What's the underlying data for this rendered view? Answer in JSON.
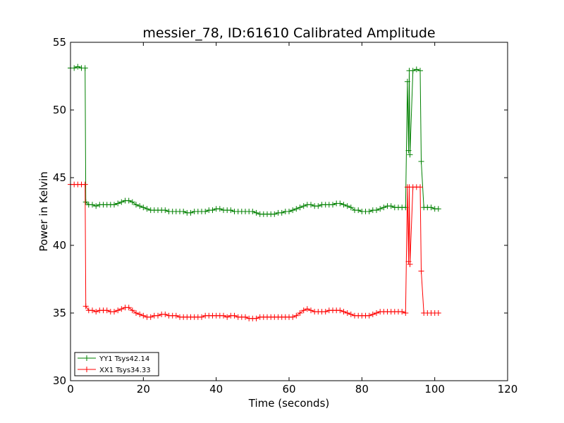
{
  "chart_data": {
    "type": "line",
    "title": "messier_78, ID:61610 Calibrated Amplitude",
    "xlabel": "Time (seconds)",
    "ylabel": "Power in Kelvin",
    "xlim": [
      0,
      120
    ],
    "ylim": [
      30,
      55
    ],
    "xticks": [
      "0",
      "20",
      "40",
      "60",
      "80",
      "100",
      "120"
    ],
    "yticks": [
      "30",
      "35",
      "40",
      "45",
      "50",
      "55"
    ],
    "grid": false,
    "legend_position": "lower-left",
    "series": [
      {
        "name": "YY1 Tsys42.14",
        "color": "#008000",
        "marker": "+",
        "x": [
          0,
          1,
          2,
          3,
          4,
          4.2,
          5,
          6,
          7,
          8,
          9,
          10,
          11,
          12,
          13,
          14,
          15,
          16,
          17,
          18,
          19,
          20,
          21,
          22,
          23,
          24,
          25,
          26,
          27,
          28,
          29,
          30,
          31,
          32,
          33,
          34,
          35,
          36,
          37,
          38,
          39,
          40,
          41,
          42,
          43,
          44,
          45,
          46,
          47,
          48,
          49,
          50,
          51,
          52,
          53,
          54,
          55,
          56,
          57,
          58,
          59,
          60,
          61,
          62,
          63,
          64,
          65,
          66,
          67,
          68,
          69,
          70,
          71,
          72,
          73,
          74,
          75,
          76,
          77,
          78,
          79,
          80,
          81,
          82,
          83,
          84,
          85,
          86,
          87,
          88,
          89,
          90,
          91,
          92,
          92.5,
          92.8,
          93,
          93.2,
          94,
          95,
          96,
          96.3,
          97,
          98,
          99,
          100,
          101
        ],
        "values": [
          53.1,
          53.1,
          53.2,
          53.1,
          53.1,
          43.2,
          43.0,
          43.0,
          42.9,
          43.0,
          43.0,
          43.0,
          43.0,
          43.0,
          43.1,
          43.2,
          43.3,
          43.3,
          43.2,
          43.0,
          42.9,
          42.8,
          42.7,
          42.6,
          42.6,
          42.6,
          42.6,
          42.6,
          42.5,
          42.5,
          42.5,
          42.5,
          42.5,
          42.4,
          42.4,
          42.5,
          42.5,
          42.5,
          42.5,
          42.6,
          42.6,
          42.7,
          42.7,
          42.6,
          42.6,
          42.6,
          42.5,
          42.5,
          42.5,
          42.5,
          42.5,
          42.5,
          42.4,
          42.3,
          42.3,
          42.3,
          42.3,
          42.3,
          42.4,
          42.4,
          42.5,
          42.5,
          42.6,
          42.7,
          42.8,
          42.9,
          43.0,
          43.0,
          42.9,
          42.9,
          43.0,
          43.0,
          43.0,
          43.0,
          43.1,
          43.1,
          43.0,
          42.9,
          42.8,
          42.6,
          42.6,
          42.5,
          42.5,
          42.5,
          42.6,
          42.6,
          42.7,
          42.8,
          42.9,
          42.9,
          42.8,
          42.8,
          42.8,
          42.8,
          52.1,
          47.0,
          52.9,
          46.7,
          52.9,
          53.0,
          52.9,
          46.2,
          42.8,
          42.8,
          42.8,
          42.7,
          42.7
        ]
      },
      {
        "name": "XX1 Tsys34.33",
        "color": "#ff0000",
        "marker": "+",
        "x": [
          0,
          1,
          2,
          3,
          4,
          4.2,
          5,
          6,
          7,
          8,
          9,
          10,
          11,
          12,
          13,
          14,
          15,
          16,
          17,
          18,
          19,
          20,
          21,
          22,
          23,
          24,
          25,
          26,
          27,
          28,
          29,
          30,
          31,
          32,
          33,
          34,
          35,
          36,
          37,
          38,
          39,
          40,
          41,
          42,
          43,
          44,
          45,
          46,
          47,
          48,
          49,
          50,
          51,
          52,
          53,
          54,
          55,
          56,
          57,
          58,
          59,
          60,
          61,
          62,
          63,
          64,
          65,
          66,
          67,
          68,
          69,
          70,
          71,
          72,
          73,
          74,
          75,
          76,
          77,
          78,
          79,
          80,
          81,
          82,
          83,
          84,
          85,
          86,
          87,
          88,
          89,
          90,
          91,
          92,
          92.5,
          92.8,
          93,
          93.2,
          94,
          95,
          96,
          96.3,
          97,
          98,
          99,
          100,
          101
        ],
        "values": [
          44.5,
          44.5,
          44.5,
          44.5,
          44.5,
          35.5,
          35.2,
          35.2,
          35.1,
          35.2,
          35.2,
          35.2,
          35.1,
          35.1,
          35.2,
          35.3,
          35.4,
          35.4,
          35.2,
          35.0,
          34.9,
          34.8,
          34.7,
          34.7,
          34.8,
          34.8,
          34.9,
          34.9,
          34.8,
          34.8,
          34.8,
          34.7,
          34.7,
          34.7,
          34.7,
          34.7,
          34.7,
          34.7,
          34.8,
          34.8,
          34.8,
          34.8,
          34.8,
          34.8,
          34.7,
          34.8,
          34.8,
          34.7,
          34.7,
          34.7,
          34.6,
          34.6,
          34.6,
          34.7,
          34.7,
          34.7,
          34.7,
          34.7,
          34.7,
          34.7,
          34.7,
          34.7,
          34.7,
          34.8,
          35.0,
          35.2,
          35.3,
          35.2,
          35.1,
          35.1,
          35.1,
          35.1,
          35.2,
          35.2,
          35.2,
          35.2,
          35.1,
          35.0,
          34.9,
          34.8,
          34.8,
          34.8,
          34.8,
          34.8,
          34.9,
          35.0,
          35.1,
          35.1,
          35.1,
          35.1,
          35.1,
          35.1,
          35.1,
          35.0,
          44.3,
          38.8,
          44.3,
          38.6,
          44.3,
          44.3,
          44.3,
          38.1,
          35.0,
          35.0,
          35.0,
          35.0,
          35.0
        ]
      }
    ]
  }
}
